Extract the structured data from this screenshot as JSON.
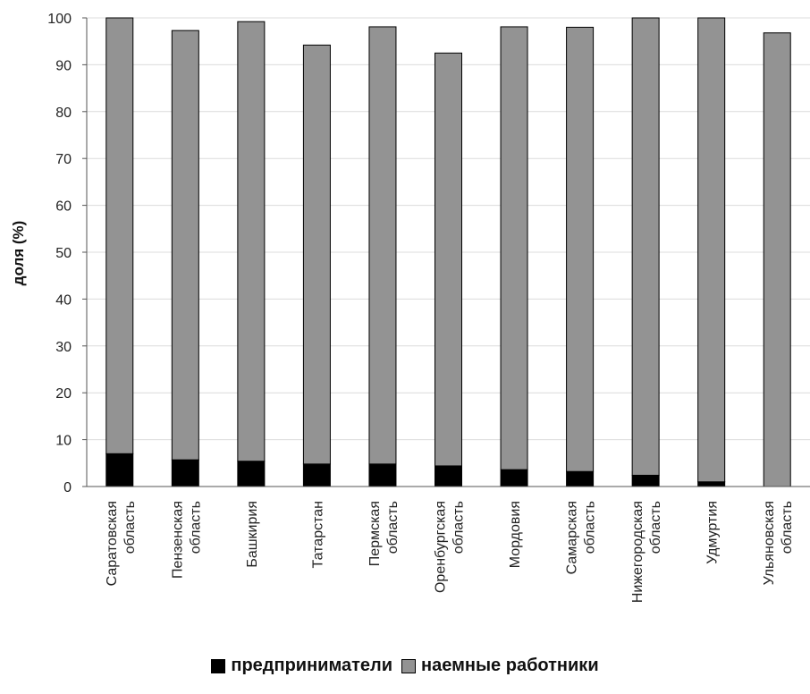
{
  "chart_data": {
    "type": "bar",
    "stacked": true,
    "ylabel": "доля (%)",
    "ylim": [
      0,
      100
    ],
    "yticks": [
      "0",
      "10",
      "20",
      "30",
      "40",
      "50",
      "60",
      "70",
      "80",
      "90",
      "100"
    ],
    "grid": true,
    "legend_position": "bottom",
    "categories": [
      [
        "Саратовская",
        "область"
      ],
      [
        "Пензенская",
        "область"
      ],
      [
        "Башкирия"
      ],
      [
        "Татарстан"
      ],
      [
        "Пермская",
        "область"
      ],
      [
        "Оренбургская",
        "область"
      ],
      [
        "Мордовия"
      ],
      [
        "Самарская",
        "область"
      ],
      [
        "Нижегородская",
        "область"
      ],
      [
        "Удмуртия"
      ],
      [
        "Ульяновская",
        "область"
      ]
    ],
    "series": [
      {
        "name": "предприниматели",
        "color": "#000000",
        "values": [
          7.0,
          5.7,
          5.4,
          4.8,
          4.8,
          4.4,
          3.6,
          3.2,
          2.4,
          1.0,
          0.0
        ]
      },
      {
        "name": "наемные работники",
        "color": "#939393",
        "values": [
          93.0,
          91.6,
          93.8,
          89.4,
          93.3,
          88.1,
          94.5,
          94.8,
          97.6,
          99.0,
          96.8
        ]
      }
    ]
  }
}
